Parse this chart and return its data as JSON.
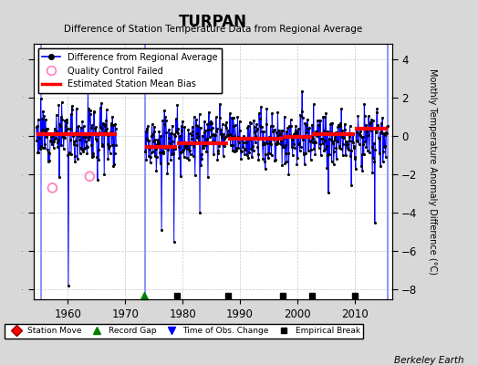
{
  "title": "TURPAN",
  "subtitle": "Difference of Station Temperature Data from Regional Average",
  "ylabel": "Monthly Temperature Anomaly Difference (°C)",
  "credit": "Berkeley Earth",
  "xlim": [
    1954.0,
    2016.5
  ],
  "ylim": [
    -8.5,
    4.8
  ],
  "yticks": [
    -8,
    -6,
    -4,
    -2,
    0,
    2,
    4
  ],
  "xticks": [
    1960,
    1970,
    1980,
    1990,
    2000,
    2010
  ],
  "fig_bg_color": "#d8d8d8",
  "plot_bg_color": "#ffffff",
  "grid_color": "#c8c8c8",
  "main_line_color": "#0000ff",
  "main_dot_color": "#000000",
  "bias_line_color": "#ff0000",
  "qc_fail_color": "#ff80c0",
  "vert_line_color": "#8888ff",
  "seg1_start": 1954.5,
  "seg1_end": 1968.5,
  "seg1_bias": 0.12,
  "seg2_start": 1973.5,
  "seg2_end": 2015.8,
  "bias_parts": [
    {
      "start": 1973.5,
      "end": 1979.0,
      "bias": -0.55
    },
    {
      "start": 1979.0,
      "end": 1988.0,
      "bias": -0.38
    },
    {
      "start": 1988.0,
      "end": 1997.5,
      "bias": -0.12
    },
    {
      "start": 1997.5,
      "end": 2002.5,
      "bias": -0.05
    },
    {
      "start": 2002.5,
      "end": 2010.0,
      "bias": 0.08
    },
    {
      "start": 2010.0,
      "end": 2015.8,
      "bias": 0.38
    }
  ],
  "vert_lines": [
    1955.3,
    1973.5,
    2015.8
  ],
  "record_gaps": [
    1973.3
  ],
  "empirical_breaks": [
    1979.0,
    1988.0,
    1997.5,
    2002.5,
    2010.0
  ],
  "qc_times": [
    1957.3,
    1963.8
  ],
  "qc_values": [
    -2.7,
    -2.1
  ],
  "seed": 12,
  "noise_std": 0.72,
  "marker_y": -8.3,
  "bottom_legend_items": [
    "Station Move",
    "Record Gap",
    "Time of Obs. Change",
    "Empirical Break"
  ]
}
